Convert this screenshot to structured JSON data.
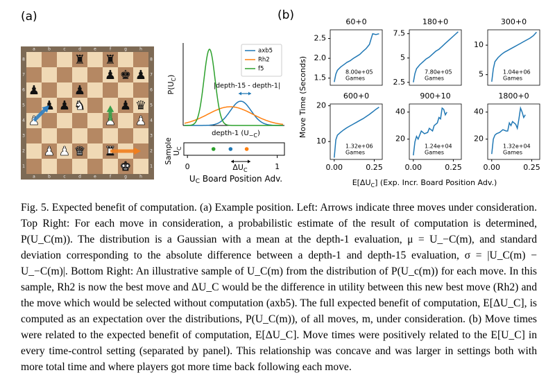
{
  "panel_a_label": "(a)",
  "panel_b_label": "(b)",
  "board": {
    "files": [
      "a",
      "b",
      "c",
      "d",
      "e",
      "f",
      "g",
      "h"
    ],
    "ranks": [
      "8",
      "7",
      "6",
      "5",
      "4",
      "3",
      "2",
      "1"
    ]
  },
  "distribution_plot": {
    "ylabel": {
      "main": "P(U",
      "sub": "C",
      "end": ")"
    },
    "xlabel": {
      "main": "depth-1 (U",
      "sub": "−C",
      "end": ")"
    },
    "annotation": "|depth-15 - depth-1|",
    "legend": [
      {
        "name": "axb5",
        "color": "#1f77b4"
      },
      {
        "name": "Rh2",
        "color": "#ff7f0e"
      },
      {
        "name": "f5",
        "color": "#2ca02c"
      }
    ]
  },
  "sample_plot": {
    "ylabel": {
      "main": "Sample",
      "sub_main": "U",
      "sub": "C"
    },
    "xlabel": {
      "main": "U",
      "sub": "C",
      "end": " Board Position Adv."
    },
    "annotation": {
      "main": "ΔU",
      "sub": "C"
    },
    "xlim": [
      -0.04,
      1.08
    ],
    "xticks": [
      0,
      1
    ],
    "values": [
      0.29,
      0.48,
      0.66
    ],
    "colors": [
      "#2ca02c",
      "#1f77b4",
      "#ff7f0e"
    ]
  },
  "shared_ylabel": "Move Time (Seconds)",
  "shared_xlabel": {
    "main": "E[ΔU",
    "sub": "C",
    "end": "] (Exp. Incr. Board Position Adv.)"
  },
  "chart_data": [
    {
      "type": "line",
      "title": "60+0",
      "annotation": [
        "8.00e+05",
        "Games"
      ],
      "color": "#1f77b4",
      "x": [
        0,
        0.01,
        0.02,
        0.04,
        0.06,
        0.08,
        0.1,
        0.12,
        0.14,
        0.16,
        0.18,
        0.2,
        0.22,
        0.24,
        0.26,
        0.28
      ],
      "values": [
        1.4,
        1.6,
        1.7,
        1.78,
        1.84,
        1.9,
        1.94,
        2.0,
        2.05,
        2.1,
        2.18,
        2.25,
        2.35,
        2.62,
        2.6,
        2.62
      ],
      "xlim": [
        -0.025,
        0.3
      ],
      "ylim": [
        1.32,
        2.72
      ],
      "yticks": [
        {
          "value": 1.5,
          "label": "1.5"
        },
        {
          "value": 2.0,
          "label": "2.0"
        },
        {
          "value": 2.5,
          "label": "2.5"
        }
      ]
    },
    {
      "type": "line",
      "title": "180+0",
      "annotation": [
        "7.80e+05",
        "Games"
      ],
      "color": "#1f77b4",
      "x": [
        0,
        0.01,
        0.02,
        0.04,
        0.06,
        0.08,
        0.1,
        0.12,
        0.14,
        0.16,
        0.18,
        0.2,
        0.22,
        0.24,
        0.26,
        0.28
      ],
      "values": [
        2.5,
        3.4,
        3.9,
        4.3,
        4.6,
        4.9,
        5.1,
        5.4,
        5.7,
        5.9,
        6.2,
        6.5,
        6.8,
        7.1,
        7.4,
        7.7
      ],
      "xlim": [
        -0.025,
        0.3
      ],
      "ylim": [
        2.2,
        7.9
      ],
      "yticks": [
        2.5,
        5.0,
        7.5
      ]
    },
    {
      "type": "line",
      "title": "300+0",
      "annotation": [
        "1.04e+06",
        "Games"
      ],
      "color": "#1f77b4",
      "x": [
        0,
        0.01,
        0.02,
        0.04,
        0.06,
        0.08,
        0.1,
        0.12,
        0.14,
        0.16,
        0.18,
        0.2,
        0.22,
        0.24,
        0.26,
        0.28
      ],
      "values": [
        3.8,
        6.0,
        7.2,
        7.9,
        8.4,
        8.8,
        9.1,
        9.4,
        9.7,
        10.0,
        10.3,
        10.6,
        10.9,
        11.2,
        11.6,
        12.2
      ],
      "xlim": [
        -0.025,
        0.3
      ],
      "ylim": [
        3.2,
        12.6
      ],
      "yticks": [
        5,
        10
      ]
    },
    {
      "type": "line",
      "title": "600+0",
      "annotation": [
        "1.32e+06",
        "Games"
      ],
      "color": "#1f77b4",
      "x": [
        0,
        0.01,
        0.02,
        0.04,
        0.06,
        0.08,
        0.1,
        0.12,
        0.14,
        0.16,
        0.18,
        0.2,
        0.22,
        0.24,
        0.26,
        0.28
      ],
      "values": [
        5.5,
        10.5,
        11.8,
        12.6,
        13.3,
        13.9,
        14.4,
        14.9,
        15.4,
        15.9,
        16.4,
        17.0,
        17.6,
        18.3,
        19.0,
        19.6
      ],
      "xlim": [
        -0.025,
        0.3
      ],
      "ylim": [
        5,
        20.5
      ],
      "yticks": [
        10,
        20
      ],
      "xticks": [
        {
          "value": 0,
          "label": "0.00"
        },
        {
          "value": 0.25,
          "label": "0.25"
        }
      ]
    },
    {
      "type": "line",
      "title": "900+10",
      "annotation": [
        "1.24e+04",
        "Games"
      ],
      "color": "#1f77b4",
      "x": [
        0,
        0.01,
        0.02,
        0.03,
        0.05,
        0.07,
        0.09,
        0.1,
        0.11,
        0.12,
        0.13,
        0.15,
        0.16,
        0.17,
        0.18,
        0.19,
        0.2,
        0.21
      ],
      "values": [
        8,
        18,
        22,
        20,
        26,
        24,
        25,
        28,
        27,
        26,
        30,
        32,
        36,
        35,
        43,
        42,
        38,
        40
      ],
      "xlim": [
        -0.025,
        0.3
      ],
      "ylim": [
        5,
        46
      ],
      "yticks": [
        20,
        40
      ],
      "xticks": [
        {
          "value": 0,
          "label": "0.00"
        },
        {
          "value": 0.25,
          "label": "0.25"
        }
      ]
    },
    {
      "type": "line",
      "title": "1800+0",
      "annotation": [
        "1.32e+04",
        "Games"
      ],
      "color": "#1f77b4",
      "x": [
        0,
        0.01,
        0.02,
        0.03,
        0.05,
        0.07,
        0.09,
        0.1,
        0.11,
        0.12,
        0.13,
        0.15,
        0.16,
        0.17,
        0.18,
        0.19,
        0.2,
        0.21
      ],
      "values": [
        9,
        20,
        23,
        24,
        25,
        27,
        26,
        26,
        32,
        30,
        33,
        31,
        28,
        35,
        43,
        40,
        36,
        38
      ],
      "xlim": [
        -0.025,
        0.3
      ],
      "ylim": [
        5,
        46
      ],
      "yticks": [
        20,
        40
      ],
      "xticks": [
        {
          "value": 0,
          "label": "0.00"
        },
        {
          "value": 0.25,
          "label": "0.25"
        }
      ]
    }
  ],
  "caption": "Fig. 5. Expected benefit of computation. (a) Example position. Left: Arrows indicate three moves under consideration. Top Right: For each move in consideration, a probabilistic estimate of the result of computation is determined, P(U_C(m)). The distribution is a Gaussian with a mean at the depth-1 evaluation, μ = U_−C(m), and standard deviation corresponding to the absolute difference between a depth-1 and depth-15 evaluation, σ = |U_C(m) − U_−C(m)|. Bottom Right: An illustrative sample of U_C(m) from the distribution of P(U_c(m)) for each move. In this sample, Rh2 is now the best move and ΔU_C would be the difference in utility between this new best move (Rh2) and the move which would be selected without computation (axb5). The full expected benefit of computation, E[ΔU_C], is computed as an expectation over the distributions, P(U_C(m)), of all moves, m, under consideration. (b) Move times were related to the expected benefit of computation, E[ΔU_C]. Move times were positively related to the E[U_C] in every time-control setting (separated by panel). This relationship was concave and was larger in settings both with more total time and where players got more time back following each move."
}
